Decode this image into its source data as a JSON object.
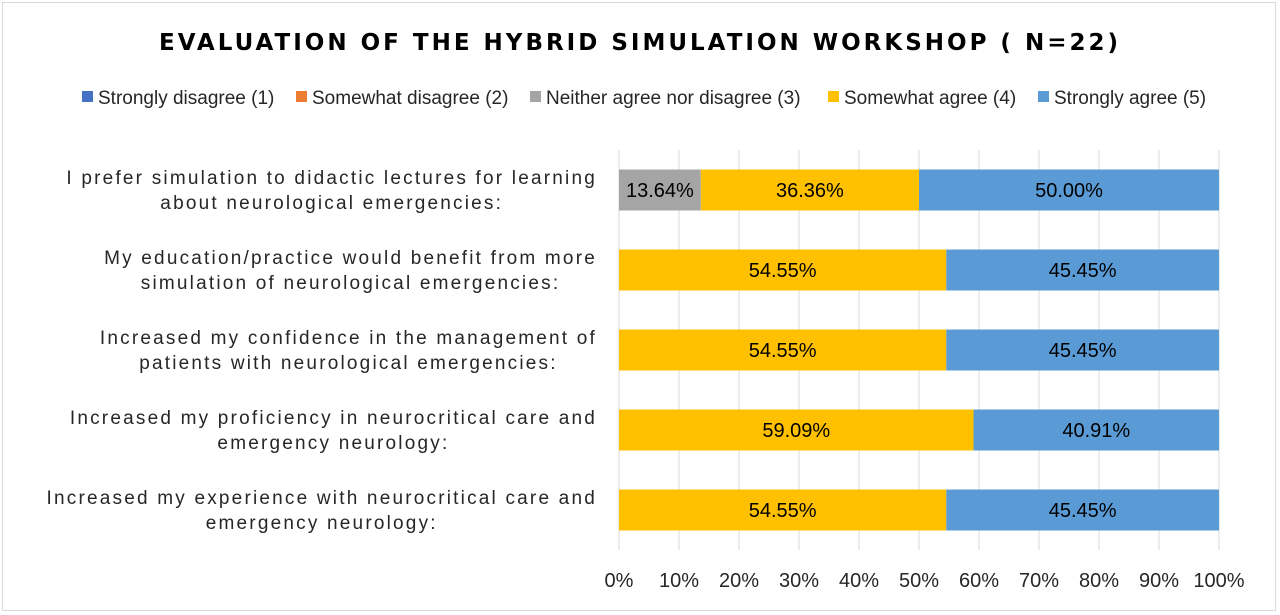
{
  "chart_data": {
    "type": "bar",
    "orientation": "horizontal",
    "stacked": true,
    "title": "EVALUATION OF THE HYBRID SIMULATION WORKSHOP ( N=22)",
    "xlabel": "",
    "ylabel": "",
    "xlim": [
      0,
      100
    ],
    "legend_position": "top",
    "grid": true,
    "categories": [
      [
        "I prefer simulation to didactic lectures for learning",
        "about neurological emergencies:"
      ],
      [
        "My education/practice would benefit from more",
        "simulation of neurological emergencies:"
      ],
      [
        "Increased my confidence in the management of",
        "patients with neurological emergencies:"
      ],
      [
        "Increased my proficiency in neurocritical care and",
        "emergency neurology:"
      ],
      [
        "Increased my experience with neurocritical care and",
        "emergency neurology:"
      ]
    ],
    "series": [
      {
        "name": "Strongly disagree (1)",
        "color": "#4472c4",
        "values": [
          0,
          0,
          0,
          0,
          0
        ],
        "labels": [
          "",
          "",
          "",
          "",
          ""
        ]
      },
      {
        "name": "Somewhat disagree (2)",
        "color": "#ed7d31",
        "values": [
          0,
          0,
          0,
          0,
          0
        ],
        "labels": [
          "",
          "",
          "",
          "",
          ""
        ]
      },
      {
        "name": "Neither agree nor disagree (3)",
        "color": "#a5a5a5",
        "values": [
          13.64,
          0,
          0,
          0,
          0
        ],
        "labels": [
          "13.64%",
          "",
          "",
          "",
          ""
        ]
      },
      {
        "name": "Somewhat agree (4)",
        "color": "#ffc000",
        "values": [
          36.36,
          54.55,
          54.55,
          59.09,
          54.55
        ],
        "labels": [
          "36.36%",
          "54.55%",
          "54.55%",
          "59.09%",
          "54.55%"
        ]
      },
      {
        "name": "Strongly agree (5)",
        "color": "#5b9bd5",
        "values": [
          50.0,
          45.45,
          45.45,
          40.91,
          45.45
        ],
        "labels": [
          "50.00%",
          "45.45%",
          "45.45%",
          "40.91%",
          "45.45%"
        ]
      }
    ],
    "xticks": [
      "0%",
      "10%",
      "20%",
      "30%",
      "40%",
      "50%",
      "60%",
      "70%",
      "80%",
      "90%",
      "100%"
    ],
    "gridline_color": "#d9d9d9"
  }
}
